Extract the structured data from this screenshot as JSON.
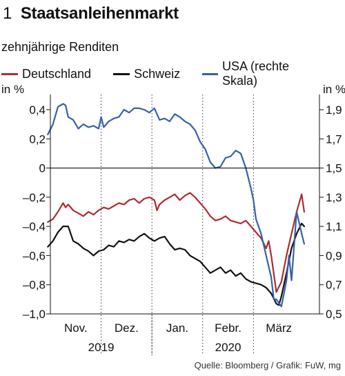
{
  "header": {
    "figure_number": "1",
    "title": "Staatsanleihenmarkt"
  },
  "subtitle": "zehnjährige Renditen",
  "legend": [
    {
      "label": "Deutschland",
      "color": "#b02a2e"
    },
    {
      "label": "Schweiz",
      "color": "#111111"
    },
    {
      "label": "USA (rechte Skala)",
      "color": "#3461a8"
    }
  ],
  "footer": "Quelle: Bloomberg / Grafik: FuW, mg",
  "chart_data": {
    "type": "line",
    "title": "Staatsanleihenmarkt",
    "subtitle": "zehnjährige Renditen",
    "y_left": {
      "label": "in %",
      "range": [
        -1.0,
        0.5
      ],
      "ticks": [
        0.4,
        0.2,
        0,
        -0.2,
        -0.4,
        -0.6,
        -0.8,
        -1.0
      ],
      "tick_labels": [
        "0,4",
        "0,2",
        "0",
        "–0,2",
        "–0,4",
        "–0,6",
        "–0,8",
        "–1,0"
      ]
    },
    "y_right": {
      "label": "in %",
      "range": [
        0.5,
        2.0
      ],
      "ticks": [
        1.9,
        1.7,
        1.5,
        1.3,
        1.1,
        0.9,
        0.7,
        0.5
      ],
      "tick_labels": [
        "1,9",
        "1,7",
        "1,5",
        "1,3",
        "1,1",
        "0,9",
        "0,7",
        "0,5"
      ]
    },
    "x_axis": {
      "x_range": [
        0,
        5.3
      ],
      "month_labels": [
        "Nov.",
        "Dez.",
        "Jan.",
        "Febr.",
        "März"
      ],
      "month_label_positions": [
        0.5,
        1.5,
        2.5,
        3.5,
        4.5
      ],
      "month_dividers": [
        1,
        2,
        3,
        4
      ],
      "year_labels": [
        {
          "label": "2019",
          "x": 1.0
        },
        {
          "label": "2020",
          "x": 3.5
        }
      ],
      "year_divider": 2
    },
    "grid": "vertical dotted at month boundaries",
    "zero_line": true,
    "series": [
      {
        "name": "Deutschland",
        "color": "#b02a2e",
        "axis": "left",
        "x": [
          -0.05,
          0.05,
          0.15,
          0.25,
          0.3,
          0.35,
          0.45,
          0.55,
          0.65,
          0.75,
          0.85,
          0.95,
          1.05,
          1.15,
          1.25,
          1.35,
          1.45,
          1.55,
          1.65,
          1.75,
          1.85,
          1.95,
          2.05,
          2.1,
          2.15,
          2.25,
          2.35,
          2.45,
          2.55,
          2.65,
          2.75,
          2.85,
          2.95,
          3.05,
          3.15,
          3.25,
          3.35,
          3.45,
          3.55,
          3.65,
          3.75,
          3.85,
          3.95,
          4.05,
          4.15,
          4.25,
          4.3,
          4.35,
          4.45,
          4.55,
          4.65,
          4.75,
          4.85,
          4.95,
          5.0
        ],
        "values": [
          -0.37,
          -0.35,
          -0.3,
          -0.24,
          -0.27,
          -0.25,
          -0.29,
          -0.31,
          -0.33,
          -0.3,
          -0.32,
          -0.29,
          -0.27,
          -0.28,
          -0.26,
          -0.24,
          -0.25,
          -0.22,
          -0.21,
          -0.24,
          -0.21,
          -0.2,
          -0.22,
          -0.29,
          -0.25,
          -0.22,
          -0.2,
          -0.18,
          -0.22,
          -0.19,
          -0.17,
          -0.2,
          -0.24,
          -0.28,
          -0.33,
          -0.36,
          -0.35,
          -0.33,
          -0.36,
          -0.37,
          -0.38,
          -0.36,
          -0.4,
          -0.44,
          -0.48,
          -0.55,
          -0.5,
          -0.6,
          -0.85,
          -0.78,
          -0.6,
          -0.45,
          -0.3,
          -0.18,
          -0.3
        ]
      },
      {
        "name": "Schweiz",
        "color": "#111111",
        "axis": "left",
        "x": [
          -0.05,
          0.05,
          0.15,
          0.25,
          0.35,
          0.45,
          0.55,
          0.65,
          0.75,
          0.85,
          0.95,
          1.05,
          1.15,
          1.25,
          1.35,
          1.45,
          1.55,
          1.65,
          1.75,
          1.85,
          1.95,
          2.05,
          2.15,
          2.25,
          2.35,
          2.45,
          2.55,
          2.65,
          2.75,
          2.85,
          2.95,
          3.05,
          3.15,
          3.25,
          3.35,
          3.45,
          3.55,
          3.65,
          3.75,
          3.85,
          3.95,
          4.05,
          4.15,
          4.25,
          4.35,
          4.45,
          4.5,
          4.55,
          4.65,
          4.75,
          4.85,
          4.95,
          5.0
        ],
        "values": [
          -0.54,
          -0.5,
          -0.44,
          -0.4,
          -0.4,
          -0.5,
          -0.52,
          -0.55,
          -0.57,
          -0.6,
          -0.57,
          -0.56,
          -0.53,
          -0.54,
          -0.5,
          -0.51,
          -0.49,
          -0.5,
          -0.47,
          -0.45,
          -0.48,
          -0.5,
          -0.48,
          -0.47,
          -0.52,
          -0.56,
          -0.55,
          -0.56,
          -0.6,
          -0.62,
          -0.64,
          -0.68,
          -0.72,
          -0.7,
          -0.68,
          -0.72,
          -0.7,
          -0.74,
          -0.72,
          -0.76,
          -0.78,
          -0.79,
          -0.8,
          -0.82,
          -0.86,
          -0.93,
          -0.94,
          -0.88,
          -0.72,
          -0.55,
          -0.45,
          -0.38,
          -0.4
        ]
      },
      {
        "name": "USA (rechte Skala)",
        "color": "#3461a8",
        "axis": "right",
        "x": [
          -0.05,
          0.05,
          0.15,
          0.25,
          0.3,
          0.35,
          0.45,
          0.55,
          0.65,
          0.75,
          0.85,
          0.95,
          1.0,
          1.05,
          1.15,
          1.25,
          1.35,
          1.45,
          1.55,
          1.65,
          1.75,
          1.85,
          1.95,
          2.05,
          2.15,
          2.25,
          2.35,
          2.45,
          2.55,
          2.65,
          2.75,
          2.85,
          2.95,
          3.05,
          3.15,
          3.25,
          3.35,
          3.45,
          3.55,
          3.65,
          3.75,
          3.85,
          3.95,
          4.0,
          4.05,
          4.15,
          4.25,
          4.35,
          4.4,
          4.45,
          4.55,
          4.65,
          4.7,
          4.75,
          4.85,
          4.95,
          5.0
        ],
        "values": [
          1.73,
          1.8,
          1.92,
          1.94,
          1.93,
          1.85,
          1.83,
          1.77,
          1.8,
          1.78,
          1.79,
          1.77,
          1.85,
          1.78,
          1.82,
          1.84,
          1.85,
          1.9,
          1.88,
          1.91,
          1.91,
          1.9,
          1.88,
          1.91,
          1.83,
          1.84,
          1.82,
          1.87,
          1.85,
          1.82,
          1.8,
          1.76,
          1.68,
          1.63,
          1.54,
          1.5,
          1.51,
          1.57,
          1.58,
          1.62,
          1.6,
          1.5,
          1.36,
          1.28,
          1.15,
          1.05,
          0.9,
          0.75,
          0.6,
          0.6,
          0.55,
          0.73,
          0.9,
          0.73,
          1.2,
          1.05,
          0.98
        ]
      }
    ]
  }
}
